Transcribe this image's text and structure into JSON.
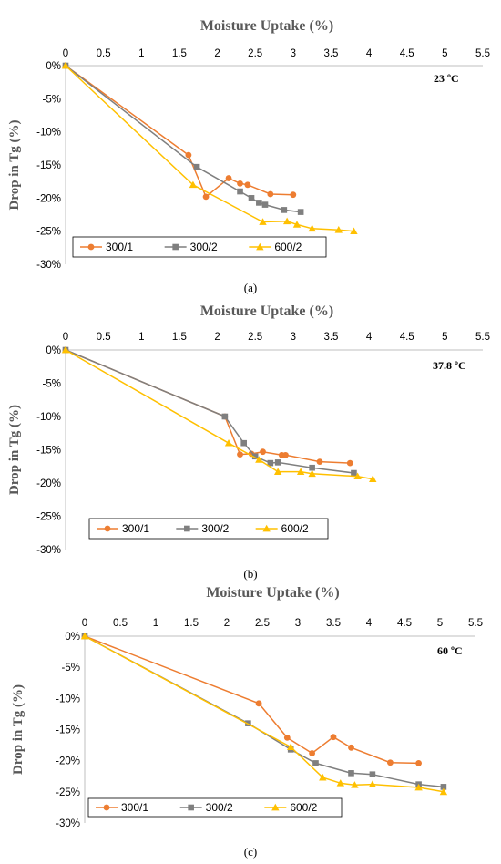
{
  "chart_data": [
    {
      "type": "line",
      "panel_label": "(a)",
      "title": "Moisture Uptake (%)",
      "ylabel": "Drop in Tg (%)",
      "annotation": "23 ºC",
      "xlim": [
        0,
        5.5
      ],
      "ylim": [
        -30,
        0
      ],
      "x_ticks": [
        "0",
        "0.5",
        "1",
        "1.5",
        "2",
        "2.5",
        "3",
        "3.5",
        "4",
        "4.5",
        "5",
        "5.5"
      ],
      "y_ticks": [
        "0%",
        "-5%",
        "-10%",
        "-15%",
        "-20%",
        "-25%",
        "-30%"
      ],
      "legend": "bottom-left",
      "series": [
        {
          "name": "300/1",
          "color": "#ED7D31",
          "marker": "circle",
          "x": [
            0,
            1.62,
            1.85,
            2.15,
            2.3,
            2.4,
            2.7,
            3.0
          ],
          "y": [
            0,
            -13.5,
            -19.8,
            -17.0,
            -17.8,
            -18.0,
            -19.4,
            -19.5
          ]
        },
        {
          "name": "300/2",
          "color": "#7F7F7F",
          "marker": "square",
          "x": [
            0,
            1.73,
            2.3,
            2.45,
            2.55,
            2.63,
            2.88,
            3.1
          ],
          "y": [
            0,
            -15.3,
            -19.0,
            -20.0,
            -20.7,
            -21.0,
            -21.8,
            -22.1
          ]
        },
        {
          "name": "600/2",
          "color": "#FFC000",
          "marker": "triangle",
          "x": [
            0,
            1.68,
            2.6,
            2.92,
            3.05,
            3.25,
            3.6,
            3.8
          ],
          "y": [
            0,
            -18.0,
            -23.6,
            -23.5,
            -24.0,
            -24.6,
            -24.8,
            -25.0
          ]
        }
      ]
    },
    {
      "type": "line",
      "panel_label": "(b)",
      "title": "Moisture Uptake (%)",
      "ylabel": "Drop in Tg (%)",
      "annotation": "37.8 ºC",
      "xlim": [
        0,
        5.5
      ],
      "ylim": [
        -30,
        0
      ],
      "x_ticks": [
        "0",
        "0.5",
        "1",
        "1.5",
        "2",
        "2.5",
        "3",
        "3.5",
        "4",
        "4.5",
        "5",
        "5.5"
      ],
      "y_ticks": [
        "0%",
        "-5%",
        "-10%",
        "-15%",
        "-20%",
        "-25%",
        "-30%"
      ],
      "legend": "bottom",
      "series": [
        {
          "name": "300/1",
          "color": "#ED7D31",
          "marker": "circle",
          "x": [
            0,
            2.1,
            2.3,
            2.45,
            2.6,
            2.85,
            2.9,
            3.35,
            3.75
          ],
          "y": [
            0,
            -10.0,
            -15.7,
            -15.6,
            -15.3,
            -15.8,
            -15.8,
            -16.8,
            -17.0
          ]
        },
        {
          "name": "300/2",
          "color": "#7F7F7F",
          "marker": "square",
          "x": [
            0,
            2.1,
            2.35,
            2.5,
            2.7,
            2.8,
            3.25,
            3.8
          ],
          "y": [
            0,
            -10.0,
            -14.0,
            -16.0,
            -17.0,
            -16.9,
            -17.7,
            -18.5
          ]
        },
        {
          "name": "600/2",
          "color": "#FFC000",
          "marker": "triangle",
          "x": [
            0,
            2.15,
            2.55,
            2.8,
            3.1,
            3.25,
            3.85,
            4.05
          ],
          "y": [
            0,
            -14.0,
            -16.5,
            -18.3,
            -18.3,
            -18.6,
            -19.0,
            -19.4
          ]
        }
      ]
    },
    {
      "type": "line",
      "panel_label": "(c)",
      "title": "Moisture Uptake (%)",
      "ylabel": "Drop in Tg (%)",
      "annotation": "60 ºC",
      "xlim": [
        0,
        5.5
      ],
      "ylim": [
        -30,
        0
      ],
      "x_ticks": [
        "0",
        "0.5",
        "1",
        "1.5",
        "2",
        "2.5",
        "3",
        "3.5",
        "4",
        "4.5",
        "5",
        "5.5"
      ],
      "y_ticks": [
        "0%",
        "-5%",
        "-10%",
        "-15%",
        "-20%",
        "-25%",
        "-30%"
      ],
      "legend": "bottom-left",
      "series": [
        {
          "name": "300/1",
          "color": "#ED7D31",
          "marker": "circle",
          "x": [
            0,
            2.45,
            2.85,
            3.2,
            3.5,
            3.75,
            4.3,
            4.7
          ],
          "y": [
            0,
            -10.8,
            -16.3,
            -18.8,
            -16.2,
            -17.9,
            -20.3,
            -20.4
          ]
        },
        {
          "name": "300/2",
          "color": "#7F7F7F",
          "marker": "square",
          "x": [
            0,
            2.3,
            2.9,
            3.25,
            3.75,
            4.05,
            4.7,
            5.05
          ],
          "y": [
            0,
            -14.0,
            -18.2,
            -20.4,
            -22.0,
            -22.2,
            -23.8,
            -24.2
          ]
        },
        {
          "name": "600/2",
          "color": "#FFC000",
          "marker": "triangle",
          "x": [
            0,
            2.9,
            3.35,
            3.6,
            3.8,
            4.05,
            4.7,
            5.05
          ],
          "y": [
            0,
            -17.8,
            -22.7,
            -23.6,
            -23.9,
            -23.8,
            -24.3,
            -25.0
          ]
        }
      ]
    }
  ]
}
